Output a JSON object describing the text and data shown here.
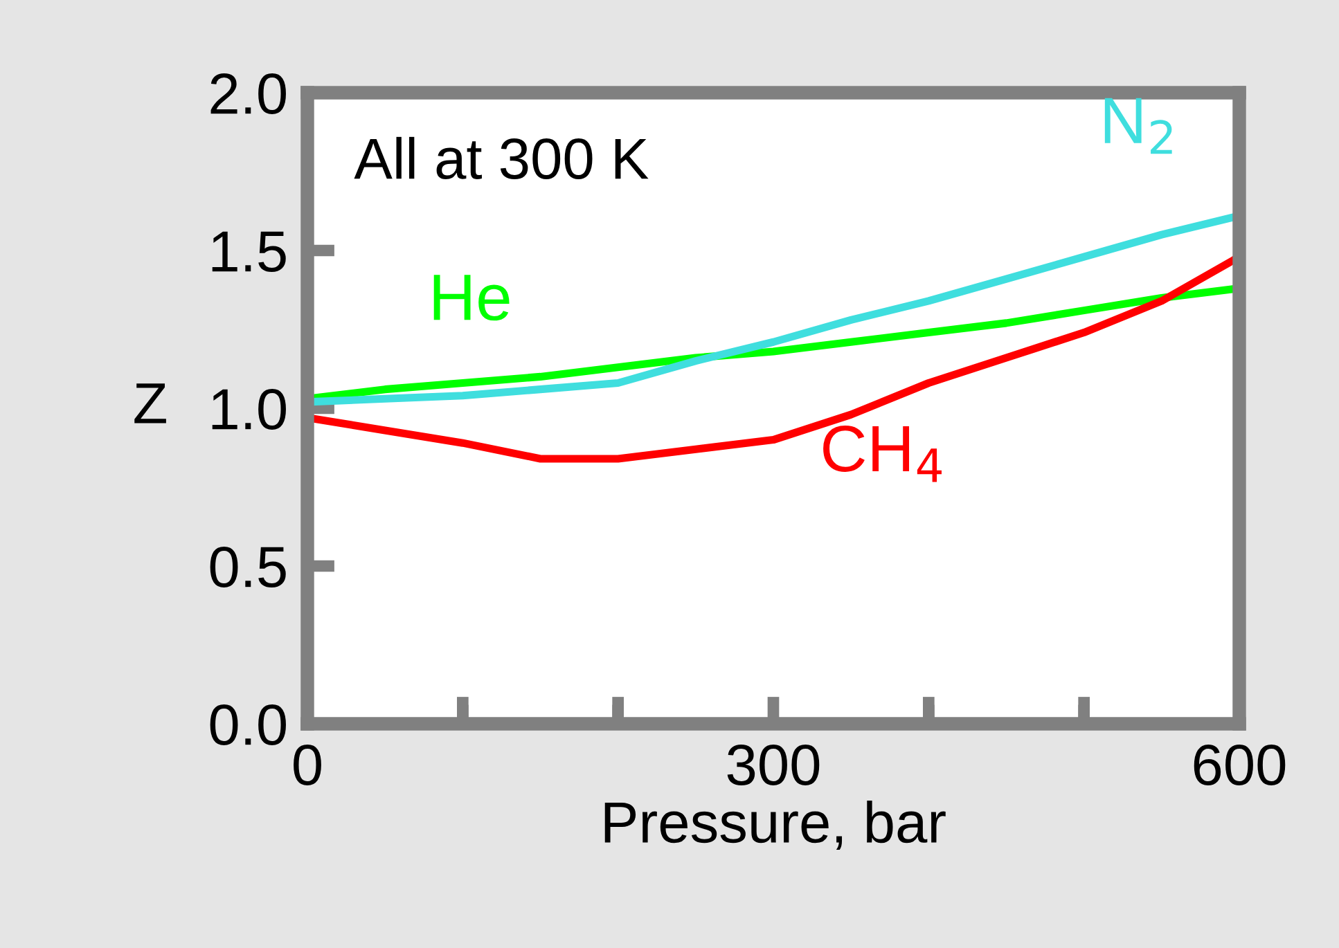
{
  "chart_data": {
    "type": "line",
    "xlabel": "Pressure, bar",
    "ylabel": "Z",
    "annotations": [
      "All at 300 K"
    ],
    "xlim": [
      0,
      600
    ],
    "ylim": [
      0,
      2
    ],
    "xticks": [
      0,
      {
        "value": 100,
        "label": null
      },
      {
        "value": 200,
        "label": null
      },
      300,
      {
        "value": 400,
        "label": null
      },
      {
        "value": 500,
        "label": null
      },
      600
    ],
    "yticks": [
      {
        "value": 0,
        "label": "0.0"
      },
      {
        "value": 0.5,
        "label": "0.5"
      },
      {
        "value": 1,
        "label": "1.0"
      },
      {
        "value": 1.5,
        "label": "1.5"
      },
      {
        "value": 2,
        "label": "2.0"
      }
    ],
    "grid": false,
    "legend": false,
    "x": [
      0,
      50,
      100,
      150,
      200,
      250,
      300,
      350,
      400,
      450,
      500,
      550,
      600
    ],
    "series": [
      {
        "name": "He",
        "color": "#00ff00",
        "values": [
          1.03,
          1.06,
          1.08,
          1.1,
          1.13,
          1.16,
          1.18,
          1.21,
          1.24,
          1.27,
          1.31,
          1.35,
          1.38
        ]
      },
      {
        "name": "N$_{2}$",
        "color": "#3fdede",
        "values": [
          1.02,
          1.03,
          1.04,
          1.06,
          1.08,
          1.15,
          1.21,
          1.28,
          1.34,
          1.41,
          1.48,
          1.55,
          1.61
        ]
      },
      {
        "name": "CH$_{4}$",
        "color": "#ff0000",
        "values": [
          0.97,
          0.93,
          0.89,
          0.84,
          0.84,
          0.87,
          0.9,
          0.98,
          1.08,
          1.16,
          1.24,
          1.34,
          1.48
        ]
      }
    ]
  }
}
